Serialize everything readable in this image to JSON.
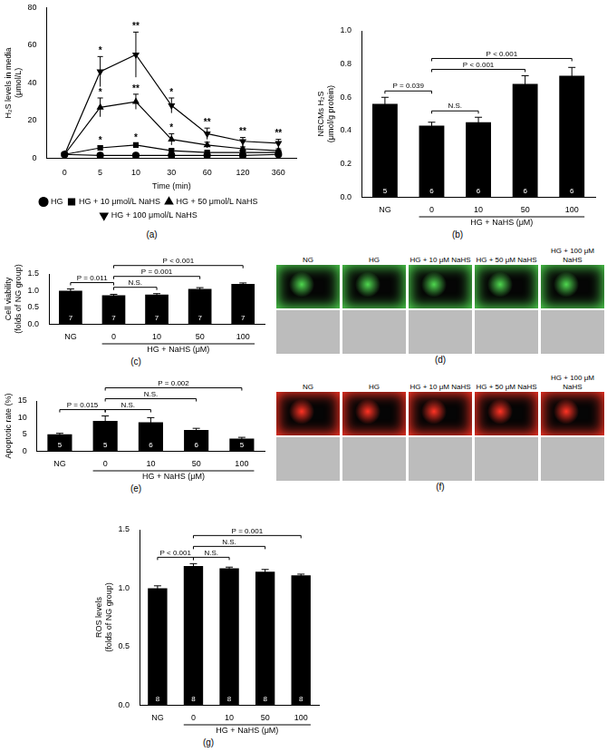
{
  "chart_data": [
    {
      "panel": "(a)",
      "type": "line",
      "x_label": "Time (min)",
      "y_label": [
        "H₂S levels in media",
        "(μmol/L)"
      ],
      "categories": [
        "0",
        "5",
        "10",
        "30",
        "60",
        "120",
        "360"
      ],
      "ylim": [
        0,
        80
      ],
      "yticks": [
        0,
        20,
        40,
        60,
        80
      ],
      "grid": false,
      "legend": "bottom",
      "series": [
        {
          "name": "HG",
          "color": "#000000",
          "marker": "circle",
          "values": [
            2,
            1.5,
            1.5,
            1.5,
            1.5,
            1.5,
            2
          ],
          "errors": [
            0.5,
            0.5,
            0.5,
            0.5,
            0.5,
            0.5,
            0.5
          ]
        },
        {
          "name": "HG + 10 μmol/L NaHS",
          "color": "#000000",
          "marker": "square",
          "values": [
            2,
            5.5,
            7,
            4,
            3,
            3,
            3
          ],
          "errors": [
            0.5,
            1,
            1,
            0.8,
            0.6,
            0.5,
            0.5
          ]
        },
        {
          "name": "HG + 50 μmol/L NaHS",
          "color": "#000000",
          "marker": "triangle",
          "values": [
            2,
            27,
            30,
            10,
            7,
            5,
            4
          ],
          "errors": [
            0.5,
            5,
            4,
            3,
            1.5,
            1,
            1
          ]
        },
        {
          "name": "HG + 100 μmol/L NaHS",
          "color": "#000000",
          "marker": "triangle-down",
          "values": [
            2,
            46,
            55,
            28,
            13,
            9,
            8
          ],
          "errors": [
            0.5,
            8,
            12,
            4,
            3,
            2,
            2
          ]
        }
      ],
      "annotations": [
        {
          "series": "HG + 100 μmol/L NaHS",
          "x": "5",
          "text": "*"
        },
        {
          "series": "HG + 100 μmol/L NaHS",
          "x": "10",
          "text": "**"
        },
        {
          "series": "HG + 100 μmol/L NaHS",
          "x": "30",
          "text": "*"
        },
        {
          "series": "HG + 100 μmol/L NaHS",
          "x": "60",
          "text": "**"
        },
        {
          "series": "HG + 100 μmol/L NaHS",
          "x": "120",
          "text": "**"
        },
        {
          "series": "HG + 100 μmol/L NaHS",
          "x": "360",
          "text": "**"
        },
        {
          "series": "HG + 50 μmol/L NaHS",
          "x": "5",
          "text": "*"
        },
        {
          "series": "HG + 50 μmol/L NaHS",
          "x": "10",
          "text": "**"
        },
        {
          "series": "HG + 50 μmol/L NaHS",
          "x": "30",
          "text": "*"
        },
        {
          "series": "HG + 10 μmol/L NaHS",
          "x": "5",
          "text": "*"
        },
        {
          "series": "HG + 10 μmol/L NaHS",
          "x": "10",
          "text": "*"
        }
      ]
    },
    {
      "panel": "(b)",
      "type": "bar",
      "y_label": [
        "NRCMs H₂S",
        "(μmol/g protein)"
      ],
      "categories": [
        "NG",
        "0",
        "10",
        "50",
        "100"
      ],
      "values": [
        0.56,
        0.43,
        0.45,
        0.68,
        0.73
      ],
      "errors": [
        0.04,
        0.02,
        0.03,
        0.05,
        0.05
      ],
      "n": [
        5,
        6,
        6,
        6,
        6
      ],
      "color": "#000000",
      "grid": false,
      "ylim": [
        0,
        1.0
      ],
      "yticks": [
        {
          "value": 0,
          "label": "0.0"
        },
        {
          "value": 0.2,
          "label": "0.2"
        },
        {
          "value": 0.4,
          "label": "0.4"
        },
        {
          "value": 0.6,
          "label": "0.6"
        },
        {
          "value": 0.8,
          "label": "0.8"
        },
        {
          "value": 1.0,
          "label": "1.0"
        }
      ],
      "x_group": {
        "label": "HG + NaHS (μM)",
        "from": "0",
        "to": "100"
      },
      "brackets": [
        {
          "from": "NG",
          "to": "0",
          "text": "P = 0.039"
        },
        {
          "from": "0",
          "to": "10",
          "text": "N.S."
        },
        {
          "from": "0",
          "to": "50",
          "text": "P < 0.001"
        },
        {
          "from": "0",
          "to": "100",
          "text": "P < 0.001"
        }
      ]
    },
    {
      "panel": "(c)",
      "type": "bar",
      "y_label": [
        "Cell viability",
        "(folds of NG group)"
      ],
      "categories": [
        "NG",
        "0",
        "10",
        "50",
        "100"
      ],
      "values": [
        1.0,
        0.86,
        0.88,
        1.05,
        1.2
      ],
      "errors": [
        0.05,
        0.03,
        0.03,
        0.04,
        0.03
      ],
      "n": [
        7,
        7,
        7,
        7,
        7
      ],
      "color": "#000000",
      "grid": false,
      "ylim": [
        0,
        1.5
      ],
      "yticks": [
        {
          "value": 0,
          "label": "0.0"
        },
        {
          "value": 0.5,
          "label": "0.5"
        },
        {
          "value": 1.0,
          "label": "1.0"
        },
        {
          "value": 1.5,
          "label": "1.5"
        }
      ],
      "x_group": {
        "label": "HG + NaHS (μM)",
        "from": "0",
        "to": "100"
      },
      "brackets": [
        {
          "from": "NG",
          "to": "0",
          "text": "P = 0.011"
        },
        {
          "from": "0",
          "to": "10",
          "text": "N.S."
        },
        {
          "from": "0",
          "to": "50",
          "text": "P = 0.001"
        },
        {
          "from": "0",
          "to": "100",
          "text": "P < 0.001"
        }
      ]
    },
    {
      "panel": "(e)",
      "type": "bar",
      "y_label": "Apoptotic rate (%)",
      "categories": [
        "NG",
        "0",
        "10",
        "50",
        "100"
      ],
      "values": [
        5.0,
        9.0,
        8.6,
        6.3,
        3.7
      ],
      "errors": [
        0.3,
        1.5,
        1.4,
        0.5,
        0.4
      ],
      "n": [
        5,
        5,
        6,
        6,
        5
      ],
      "color": "#000000",
      "grid": false,
      "ylim": [
        0,
        15
      ],
      "yticks": [
        0,
        5,
        10,
        15
      ],
      "x_group": {
        "label": "HG + NaHS (μM)",
        "from": "0",
        "to": "100"
      },
      "brackets": [
        {
          "from": "NG",
          "to": "0",
          "text": "P = 0.015"
        },
        {
          "from": "0",
          "to": "10",
          "text": "N.S."
        },
        {
          "from": "0",
          "to": "50",
          "text": "N.S."
        },
        {
          "from": "0",
          "to": "100",
          "text": "P = 0.002"
        }
      ]
    },
    {
      "panel": "(g)",
      "type": "bar",
      "y_label": [
        "ROS levels",
        "(folds of NG group)"
      ],
      "categories": [
        "NG",
        "0",
        "10",
        "50",
        "100"
      ],
      "values": [
        1.0,
        1.19,
        1.17,
        1.14,
        1.11
      ],
      "errors": [
        0.02,
        0.02,
        0.01,
        0.02,
        0.01
      ],
      "n": [
        8,
        8,
        8,
        8,
        8
      ],
      "color": "#000000",
      "grid": false,
      "ylim": [
        0,
        1.5
      ],
      "yticks": [
        {
          "value": 0,
          "label": "0.0"
        },
        {
          "value": 0.5,
          "label": "0.5"
        },
        {
          "value": 1.0,
          "label": "1.0"
        },
        {
          "value": 1.5,
          "label": "1.5"
        }
      ],
      "x_group": {
        "label": "HG + NaHS (μM)",
        "from": "0",
        "to": "100"
      },
      "brackets": [
        {
          "from": "NG",
          "to": "0",
          "text": "P < 0.001"
        },
        {
          "from": "0",
          "to": "10",
          "text": "N.S."
        },
        {
          "from": "0",
          "to": "50",
          "text": "N.S."
        },
        {
          "from": "0",
          "to": "100",
          "text": "P = 0.001"
        }
      ]
    }
  ],
  "image_panels": [
    {
      "panel": "(d)",
      "color": "#4fd84f",
      "columns": [
        "NG",
        "HG",
        "HG + 10 μM NaHS",
        "HG + 50 μM NaHS",
        "HG + 100 μM NaHS"
      ]
    },
    {
      "panel": "(f)",
      "color": "#ff3324",
      "columns": [
        "NG",
        "HG",
        "HG + 10 μM NaHS",
        "HG + 50 μM NaHS",
        "HG + 100 μM NaHS"
      ]
    }
  ]
}
